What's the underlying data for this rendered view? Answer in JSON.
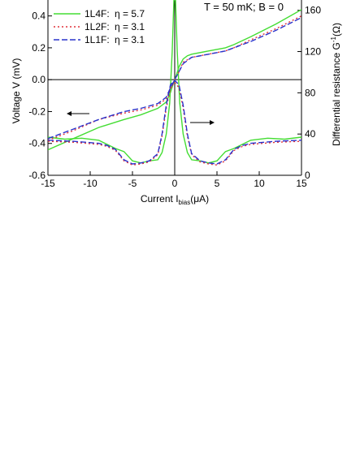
{
  "chart_data": {
    "type": "line",
    "condition_label": "T = 50 mK;  B = 0",
    "xlabel": {
      "main": "Current  I",
      "sub": "bias",
      "unit": "(μA)"
    },
    "ylabel_left": "Voltage V (mV)",
    "ylabel_right": {
      "main": "Differential resistance  G",
      "sup": "-1",
      "unit": "(Ω)"
    },
    "x_range": [
      -15,
      15
    ],
    "y_left_range": [
      -0.6,
      0.5
    ],
    "y_right_range": [
      0,
      170
    ],
    "x_ticks": [
      "-15",
      "-10",
      "-5",
      "0",
      "5",
      "10",
      "15"
    ],
    "y_left_ticks": [
      "-0.6",
      "-0.4",
      "-0.2",
      "0.0",
      "0.2",
      "0.4"
    ],
    "y_right_ticks": [
      "0",
      "40",
      "80",
      "120",
      "160"
    ],
    "legend": [
      {
        "label": "1L4F:",
        "eta": "η = 5.7",
        "color": "#44dd33",
        "dash": "solid"
      },
      {
        "label": "1L2F:",
        "eta": "η = 3.1",
        "color": "#e0303a",
        "dash": "dot"
      },
      {
        "label": "1L1F:",
        "eta": "η = 3.1",
        "color": "#2a33cc",
        "dash": "dash"
      }
    ],
    "series": [
      {
        "name": "1L4F",
        "color": "#44dd33",
        "voltage_vs_current": [
          [
            -15,
            -0.44
          ],
          [
            -12,
            -0.37
          ],
          [
            -9,
            -0.3
          ],
          [
            -6,
            -0.25
          ],
          [
            -4,
            -0.22
          ],
          [
            -2,
            -0.18
          ],
          [
            -1,
            -0.14
          ],
          [
            -0.5,
            -0.08
          ],
          [
            -0.2,
            -0.03
          ],
          [
            0,
            0
          ],
          [
            0.2,
            0.03
          ],
          [
            0.5,
            0.08
          ],
          [
            1,
            0.13
          ],
          [
            1.5,
            0.15
          ],
          [
            2,
            0.16
          ],
          [
            4,
            0.18
          ],
          [
            6,
            0.2
          ],
          [
            7,
            0.22
          ],
          [
            9,
            0.27
          ],
          [
            12,
            0.35
          ],
          [
            15,
            0.44
          ]
        ],
        "resistance_vs_current": [
          [
            -15,
            37
          ],
          [
            -13,
            35
          ],
          [
            -11,
            36
          ],
          [
            -9,
            34
          ],
          [
            -8,
            30
          ],
          [
            -7,
            26
          ],
          [
            -6,
            23
          ],
          [
            -5,
            14
          ],
          [
            -4,
            12
          ],
          [
            -3,
            14
          ],
          [
            -2,
            15
          ],
          [
            -1.5,
            22
          ],
          [
            -1,
            40
          ],
          [
            -0.6,
            70
          ],
          [
            -0.3,
            120
          ],
          [
            -0.1,
            170
          ],
          [
            0.1,
            170
          ],
          [
            0.3,
            120
          ],
          [
            0.6,
            70
          ],
          [
            1,
            40
          ],
          [
            1.5,
            22
          ],
          [
            2,
            15
          ],
          [
            3,
            14
          ],
          [
            4,
            12
          ],
          [
            5,
            14
          ],
          [
            6,
            23
          ],
          [
            7,
            26
          ],
          [
            8,
            30
          ],
          [
            9,
            34
          ],
          [
            11,
            36
          ],
          [
            13,
            35
          ],
          [
            15,
            37
          ]
        ]
      },
      {
        "name": "1L2F",
        "color": "#e0303a",
        "voltage_vs_current": [
          [
            -15,
            -0.38
          ],
          [
            -12,
            -0.32
          ],
          [
            -9,
            -0.25
          ],
          [
            -6,
            -0.21
          ],
          [
            -4,
            -0.19
          ],
          [
            -2,
            -0.16
          ],
          [
            -1,
            -0.12
          ],
          [
            -0.5,
            -0.06
          ],
          [
            0,
            0
          ],
          [
            0.5,
            0.05
          ],
          [
            1,
            0.11
          ],
          [
            2,
            0.14
          ],
          [
            4,
            0.16
          ],
          [
            6,
            0.18
          ],
          [
            7,
            0.2
          ],
          [
            9,
            0.25
          ],
          [
            12,
            0.32
          ],
          [
            15,
            0.4
          ]
        ],
        "resistance_vs_current": [
          [
            -15,
            33
          ],
          [
            -12,
            32
          ],
          [
            -9,
            30
          ],
          [
            -8,
            28
          ],
          [
            -7,
            24
          ],
          [
            -6,
            14
          ],
          [
            -5,
            10
          ],
          [
            -4,
            11
          ],
          [
            -3,
            13
          ],
          [
            -2,
            20
          ],
          [
            -1.5,
            38
          ],
          [
            -1,
            65
          ],
          [
            -0.5,
            85
          ],
          [
            0,
            90
          ],
          [
            0.5,
            85
          ],
          [
            1,
            65
          ],
          [
            1.5,
            38
          ],
          [
            2,
            20
          ],
          [
            3,
            13
          ],
          [
            4,
            11
          ],
          [
            5,
            10
          ],
          [
            6,
            14
          ],
          [
            7,
            24
          ],
          [
            8,
            28
          ],
          [
            9,
            30
          ],
          [
            12,
            32
          ],
          [
            15,
            33
          ]
        ]
      },
      {
        "name": "1L1F",
        "color": "#2a33cc",
        "voltage_vs_current": [
          [
            -15,
            -0.37
          ],
          [
            -12,
            -0.31
          ],
          [
            -9,
            -0.25
          ],
          [
            -6,
            -0.2
          ],
          [
            -4,
            -0.18
          ],
          [
            -2,
            -0.15
          ],
          [
            -1,
            -0.11
          ],
          [
            -0.5,
            -0.05
          ],
          [
            0,
            0
          ],
          [
            0.5,
            0.05
          ],
          [
            1,
            0.1
          ],
          [
            2,
            0.14
          ],
          [
            4,
            0.16
          ],
          [
            6,
            0.18
          ],
          [
            7,
            0.2
          ],
          [
            9,
            0.24
          ],
          [
            12,
            0.31
          ],
          [
            15,
            0.39
          ]
        ],
        "resistance_vs_current": [
          [
            -15,
            34
          ],
          [
            -12,
            33
          ],
          [
            -9,
            31
          ],
          [
            -8,
            29
          ],
          [
            -7,
            25
          ],
          [
            -6,
            15
          ],
          [
            -5,
            11
          ],
          [
            -4,
            12
          ],
          [
            -3,
            14
          ],
          [
            -2,
            21
          ],
          [
            -1.5,
            40
          ],
          [
            -1,
            68
          ],
          [
            -0.5,
            88
          ],
          [
            0,
            92
          ],
          [
            0.5,
            88
          ],
          [
            1,
            68
          ],
          [
            1.5,
            40
          ],
          [
            2,
            21
          ],
          [
            3,
            14
          ],
          [
            4,
            12
          ],
          [
            5,
            11
          ],
          [
            6,
            15
          ],
          [
            7,
            25
          ],
          [
            8,
            29
          ],
          [
            9,
            31
          ],
          [
            12,
            33
          ],
          [
            15,
            34
          ]
        ]
      }
    ],
    "grid": false,
    "legend_position": "top-left"
  }
}
